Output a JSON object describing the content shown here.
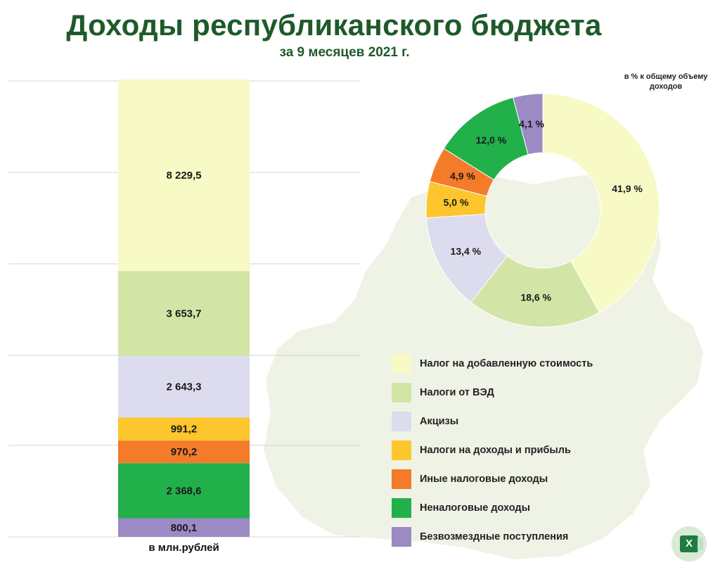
{
  "header": {
    "title": "Доходы республиканского бюджета",
    "subtitle": "за 9 месяцев 2021 г."
  },
  "bar_unit_label": "в млн.рублей",
  "donut_note": "в % к общему объему доходов",
  "colors": {
    "title": "#1e5a2a",
    "map": "#eef3e6",
    "grid": "#d4d4d4"
  },
  "chart_data": [
    {
      "type": "bar",
      "stacked": true,
      "unit": "в млн.рублей",
      "series": [
        {
          "name": "Безвозмездные поступления",
          "value": 800.1,
          "label": "800,1",
          "color": "#9b8ac4"
        },
        {
          "name": "Неналоговые доходы",
          "value": 2368.6,
          "label": "2 368,6",
          "color": "#22b04b"
        },
        {
          "name": "Иные налоговые доходы",
          "value": 970.2,
          "label": "970,2",
          "color": "#f47b2a"
        },
        {
          "name": "Налоги на доходы и прибыль",
          "value": 991.2,
          "label": "991,2",
          "color": "#fcc62c"
        },
        {
          "name": "Акцизы",
          "value": 2643.3,
          "label": "2 643,3",
          "color": "#dcdcee"
        },
        {
          "name": "Налоги от ВЭД",
          "value": 3653.7,
          "label": "3 653,7",
          "color": "#d2e5a6"
        },
        {
          "name": "Налог на добавленную стоимость",
          "value": 8229.5,
          "label": "8 229,5",
          "color": "#f7fac4"
        }
      ]
    },
    {
      "type": "pie",
      "donut": true,
      "note": "в % к общему объему доходов",
      "slices": [
        {
          "name": "Налог на добавленную стоимость",
          "value": 41.9,
          "label": "41,9 %",
          "color": "#f7fac4"
        },
        {
          "name": "Налоги от ВЭД",
          "value": 18.6,
          "label": "18,6 %",
          "color": "#d2e5a6"
        },
        {
          "name": "Акцизы",
          "value": 13.4,
          "label": "13,4 %",
          "color": "#dcdcee"
        },
        {
          "name": "Налоги на доходы и прибыль",
          "value": 5.0,
          "label": "5,0 %",
          "color": "#fcc62c"
        },
        {
          "name": "Иные налоговые доходы",
          "value": 4.9,
          "label": "4,9 %",
          "color": "#f47b2a"
        },
        {
          "name": "Неналоговые доходы",
          "value": 12.0,
          "label": "12,0 %",
          "color": "#22b04b"
        },
        {
          "name": "Безвозмездные поступления",
          "value": 4.1,
          "label": "4,1 %",
          "color": "#9b8ac4"
        }
      ]
    }
  ],
  "legend": [
    {
      "label": "Налог на добавленную стоимость",
      "color": "#f7fac4"
    },
    {
      "label": "Налоги от ВЭД",
      "color": "#d2e5a6"
    },
    {
      "label": "Акцизы",
      "color": "#dcdcee"
    },
    {
      "label": "Налоги на доходы и прибыль",
      "color": "#fcc62c"
    },
    {
      "label": "Иные налоговые доходы",
      "color": "#f47b2a"
    },
    {
      "label": "Неналоговые доходы",
      "color": "#22b04b"
    },
    {
      "label": "Безвозмездные поступления",
      "color": "#9b8ac4"
    }
  ],
  "actions": {
    "excel_icon": "excel-icon",
    "excel_letter": "X"
  }
}
